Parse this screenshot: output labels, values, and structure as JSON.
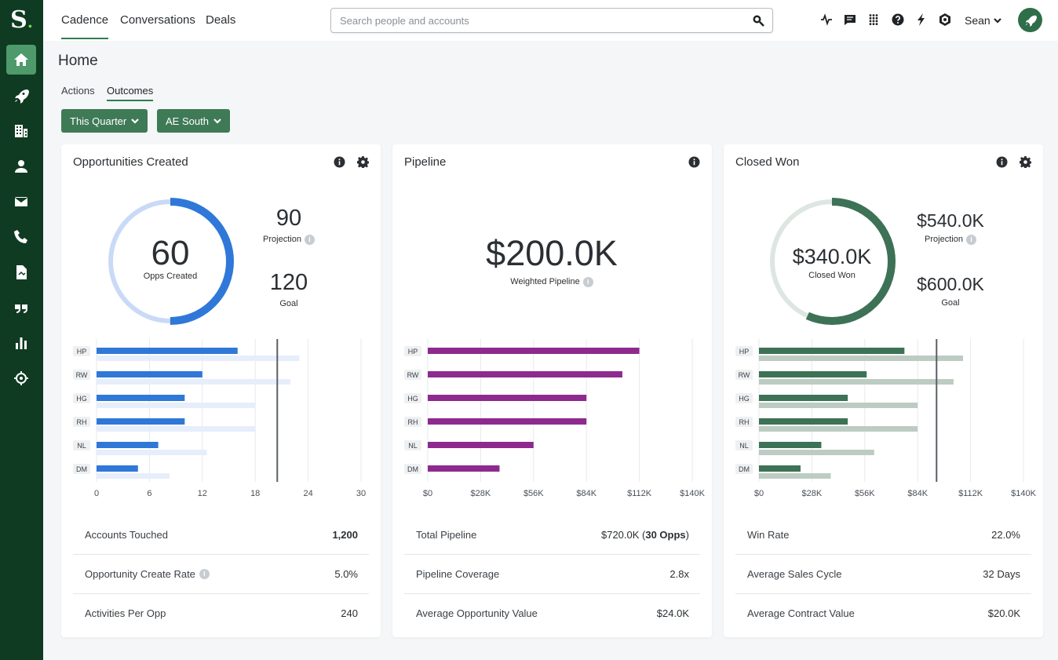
{
  "brand": {
    "logo_letter": "S",
    "logo_dot": "."
  },
  "nav_tabs": [
    {
      "label": "Cadence"
    },
    {
      "label": "Conversations"
    },
    {
      "label": "Deals"
    }
  ],
  "search": {
    "placeholder": "Search people and accounts"
  },
  "user": {
    "name": "Sean"
  },
  "page": {
    "title": "Home"
  },
  "subtabs": [
    {
      "label": "Actions"
    },
    {
      "label": "Outcomes"
    }
  ],
  "filters": [
    {
      "label": "This Quarter"
    },
    {
      "label": "AE South"
    }
  ],
  "colors": {
    "sidebar": "#0f3b22",
    "accent": "#2e7d4f",
    "blue": "#2f78d8",
    "purple": "#8e2a8e",
    "green": "#3d7256"
  },
  "cards": {
    "opps": {
      "title": "Opportunities Created",
      "main_value": "60",
      "main_label": "Opps Created",
      "gauge_progress": 0.5,
      "projection_value": "90",
      "projection_label": "Projection",
      "goal_value": "120",
      "goal_label": "Goal",
      "stats": [
        {
          "label": "Accounts Touched",
          "value": "1,200"
        },
        {
          "label": "Opportunity Create Rate",
          "value": "5.0%"
        },
        {
          "label": "Activities Per Opp",
          "value": "240"
        }
      ]
    },
    "pipeline": {
      "title": "Pipeline",
      "main_value": "$200.0K",
      "main_label": "Weighted Pipeline",
      "stats": [
        {
          "label": "Total Pipeline",
          "value_prefix": "$720.0K (",
          "value_bold": "30 Opps",
          "value_suffix": ")"
        },
        {
          "label": "Pipeline Coverage",
          "value": "2.8x"
        },
        {
          "label": "Average Opportunity Value",
          "value": "$24.0K"
        }
      ]
    },
    "closed": {
      "title": "Closed Won",
      "main_value": "$340.0K",
      "main_label": "Closed Won",
      "gauge_progress": 0.567,
      "projection_value": "$540.0K",
      "projection_label": "Projection",
      "goal_value": "$600.0K",
      "goal_label": "Goal",
      "stats": [
        {
          "label": "Win Rate",
          "value": "22.0%"
        },
        {
          "label": "Average Sales Cycle",
          "value": "32 Days"
        },
        {
          "label": "Average Contract Value",
          "value": "$20.0K"
        }
      ]
    }
  },
  "chart_data": [
    {
      "type": "bar",
      "title": "Opportunities Created",
      "categories": [
        "HP",
        "RW",
        "HG",
        "RH",
        "NL",
        "DM"
      ],
      "series": [
        {
          "values": [
            16,
            12,
            10,
            10,
            7,
            4.7
          ]
        },
        {
          "values": [
            23,
            22,
            18,
            18,
            12.5,
            8.3
          ]
        }
      ],
      "target_line": 20.5,
      "xlim": [
        0,
        30
      ],
      "xticks": [
        "0",
        "6",
        "12",
        "18",
        "24",
        "30"
      ],
      "xtick_values": [
        0,
        6,
        12,
        18,
        24,
        30
      ],
      "color": "#2f78d8",
      "light_color": "#e6eefb"
    },
    {
      "type": "bar",
      "title": "Pipeline",
      "categories": [
        "HP",
        "RW",
        "HG",
        "RH",
        "NL",
        "DM"
      ],
      "series": [
        {
          "values": [
            112,
            103,
            84,
            84,
            56,
            38
          ]
        }
      ],
      "xlim": [
        0,
        140
      ],
      "xticks": [
        "$0",
        "$28K",
        "$56K",
        "$84K",
        "$112K",
        "$140K"
      ],
      "xtick_values": [
        0,
        28,
        56,
        84,
        112,
        140
      ],
      "color": "#8e2a8e"
    },
    {
      "type": "bar",
      "title": "Closed Won",
      "categories": [
        "HP",
        "RW",
        "HG",
        "RH",
        "NL",
        "DM"
      ],
      "series": [
        {
          "values": [
            77,
            57,
            47,
            47,
            33,
            22
          ]
        },
        {
          "values": [
            108,
            103,
            84,
            84,
            61,
            38
          ]
        }
      ],
      "target_line": 94,
      "xlim": [
        0,
        140
      ],
      "xticks": [
        "$0",
        "$28K",
        "$56K",
        "$84K",
        "$112K",
        "$140K"
      ],
      "xtick_values": [
        0,
        28,
        56,
        84,
        112,
        140
      ],
      "color": "#3d7256",
      "light_color": "#bcccc2"
    }
  ]
}
